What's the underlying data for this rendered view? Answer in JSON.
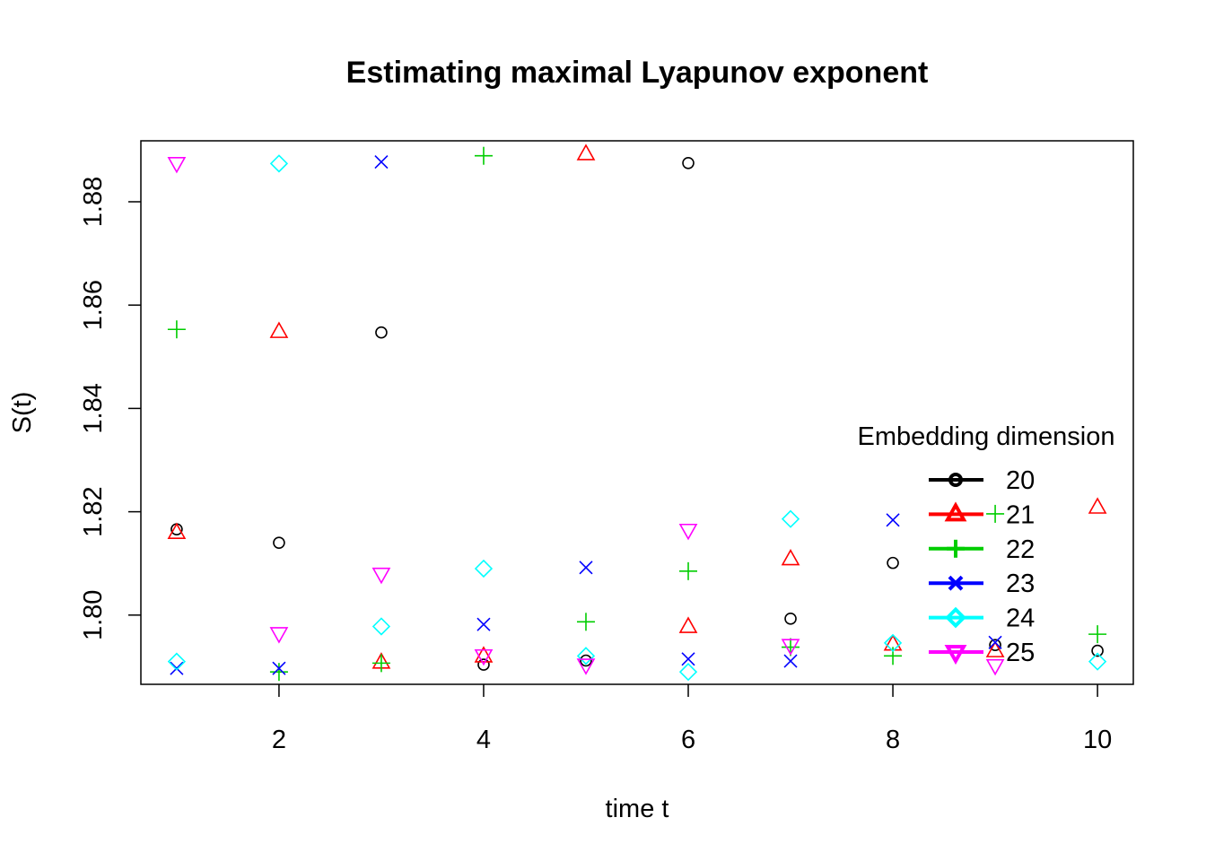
{
  "chart_data": {
    "type": "scatter",
    "title": "Estimating maximal Lyapunov exponent",
    "xlabel": "time t",
    "ylabel": "S(t)",
    "xlim": [
      0.65,
      10.35
    ],
    "ylim": [
      1.7866,
      1.8918
    ],
    "xticks": [
      2,
      4,
      6,
      8,
      10
    ],
    "yticks": [
      1.8,
      1.82,
      1.84,
      1.86,
      1.88
    ],
    "xtick_labels": [
      "2",
      "4",
      "6",
      "8",
      "10"
    ],
    "ytick_labels": [
      "1.80",
      "1.82",
      "1.84",
      "1.86",
      "1.88"
    ],
    "grid": false,
    "legend": {
      "title": "Embedding dimension",
      "position": "right"
    },
    "series": [
      {
        "name": "20",
        "color": "#000000",
        "marker": "circle",
        "points": [
          [
            1,
            1.8166
          ],
          [
            2,
            1.814
          ],
          [
            3,
            1.8547
          ],
          [
            4,
            1.7904
          ],
          [
            5,
            1.7912
          ],
          [
            6,
            1.8875
          ],
          [
            7,
            1.7993
          ],
          [
            8,
            1.8101
          ],
          [
            9,
            1.7942
          ],
          [
            10,
            1.7931
          ]
        ]
      },
      {
        "name": "21",
        "color": "#FF0000",
        "marker": "triangle-up",
        "points": [
          [
            1,
            1.8159
          ],
          [
            2,
            1.8548
          ],
          [
            3,
            1.7908
          ],
          [
            4,
            1.792
          ],
          [
            5,
            1.8892
          ],
          [
            6,
            1.7977
          ],
          [
            7,
            1.8108
          ],
          [
            8,
            1.7943
          ],
          [
            9,
            1.793
          ],
          [
            10,
            1.8208
          ]
        ]
      },
      {
        "name": "22",
        "color": "#00CD00",
        "marker": "plus",
        "points": [
          [
            1,
            1.8553
          ],
          [
            2,
            1.789
          ],
          [
            3,
            1.7907
          ],
          [
            4,
            1.8889
          ],
          [
            5,
            1.7987
          ],
          [
            6,
            1.8085
          ],
          [
            7,
            1.7938
          ],
          [
            8,
            1.7921
          ],
          [
            9,
            1.8196
          ],
          [
            10,
            1.7963
          ]
        ]
      },
      {
        "name": "23",
        "color": "#0000FF",
        "marker": "cross",
        "points": [
          [
            1,
            1.7897
          ],
          [
            2,
            1.7897
          ],
          [
            3,
            1.8877
          ],
          [
            4,
            1.7982
          ],
          [
            5,
            1.8092
          ],
          [
            6,
            1.7915
          ],
          [
            7,
            1.7911
          ],
          [
            8,
            1.8184
          ],
          [
            9,
            1.7947
          ],
          [
            10,
            null
          ]
        ]
      },
      {
        "name": "24",
        "color": "#00FFFF",
        "marker": "diamond",
        "points": [
          [
            1,
            1.791
          ],
          [
            2,
            1.8874
          ],
          [
            3,
            1.7978
          ],
          [
            4,
            1.809
          ],
          [
            5,
            1.7921
          ],
          [
            6,
            1.789
          ],
          [
            7,
            1.8186
          ],
          [
            8,
            1.7946
          ],
          [
            9,
            null
          ],
          [
            10,
            1.791
          ]
        ]
      },
      {
        "name": "25",
        "color": "#FF00FF",
        "marker": "triangle-down",
        "points": [
          [
            1,
            1.8875
          ],
          [
            2,
            1.7965
          ],
          [
            3,
            1.808
          ],
          [
            4,
            1.7922
          ],
          [
            5,
            1.7904
          ],
          [
            6,
            1.8165
          ],
          [
            7,
            1.7942
          ],
          [
            8,
            null
          ],
          [
            9,
            1.7903
          ],
          [
            10,
            null
          ]
        ]
      }
    ]
  }
}
